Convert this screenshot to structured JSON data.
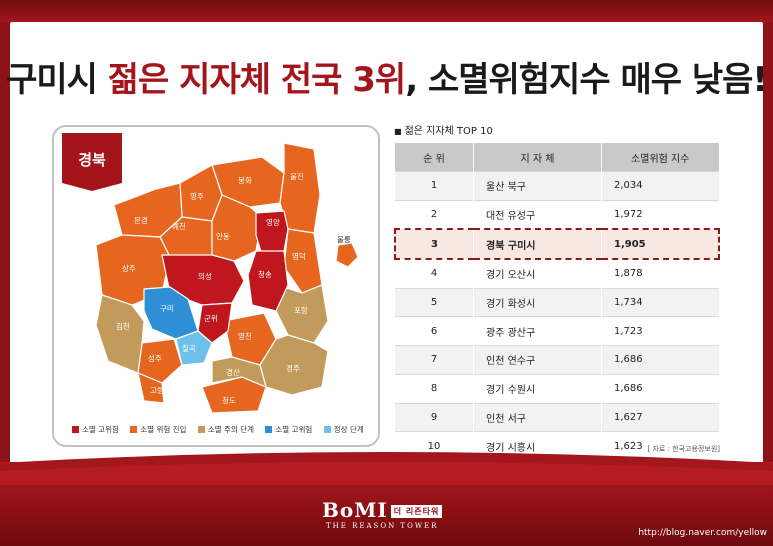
{
  "title": {
    "part1": "구미시 ",
    "part2": "젊은 지자체 전국 3위",
    "part3": ", 소멸위험지수 매우 낮음!"
  },
  "map": {
    "badge": "경북",
    "regions": [
      "봉화",
      "울진",
      "영주",
      "문경",
      "예천",
      "영양",
      "안동",
      "영덕",
      "울릉",
      "상주",
      "의성",
      "청송",
      "구미",
      "군위",
      "포항",
      "김천",
      "칠곡",
      "영천",
      "성주",
      "경주",
      "경산",
      "고령",
      "청도"
    ],
    "legend": [
      {
        "label": "소멸 고위험",
        "color": "#c0161d"
      },
      {
        "label": "소멸 위험 진입",
        "color": "#e6661f"
      },
      {
        "label": "소멸 주의 단계",
        "color": "#c29a5b"
      },
      {
        "label": "소멸 고위험",
        "color": "#2e8fd6"
      },
      {
        "label": "정상 단계",
        "color": "#6cc0ea"
      }
    ]
  },
  "table": {
    "title": "젊은 지자체 TOP 10",
    "headers": [
      "순 위",
      "지 자 체",
      "소멸위험 지수"
    ],
    "rows": [
      {
        "rank": "1",
        "name": "울산 북구",
        "value": "2,034"
      },
      {
        "rank": "2",
        "name": "대전 유성구",
        "value": "1,972"
      },
      {
        "rank": "3",
        "name": "경북 구미시",
        "value": "1,905"
      },
      {
        "rank": "4",
        "name": "경기 오산시",
        "value": "1,878"
      },
      {
        "rank": "5",
        "name": "경기 화성시",
        "value": "1,734"
      },
      {
        "rank": "6",
        "name": "광주 광산구",
        "value": "1,723"
      },
      {
        "rank": "7",
        "name": "인천 연수구",
        "value": "1,686"
      },
      {
        "rank": "8",
        "name": "경기 수원시",
        "value": "1,686"
      },
      {
        "rank": "9",
        "name": "인천 서구",
        "value": "1,627"
      },
      {
        "rank": "10",
        "name": "경기 시흥시",
        "value": "1,623"
      }
    ],
    "source": "[ 자료 : 한국고용정보원]"
  },
  "logo": {
    "name": "BoMI",
    "badge": "더 리즌타워",
    "sub": "THE REASON TOWER"
  },
  "url": "http://blog.naver.com/yellow"
}
